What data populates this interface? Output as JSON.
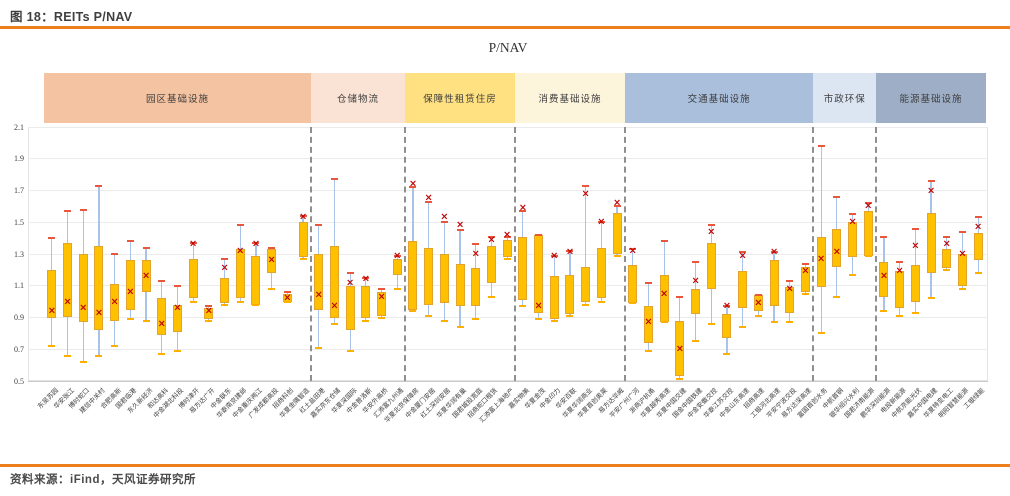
{
  "header": {
    "figure_label": "图 18：",
    "title": "REITs P/NAV"
  },
  "footer": {
    "source": "资料来源：iFind，天风证券研究所"
  },
  "chart_data": {
    "type": "boxplot",
    "title": "P/NAV",
    "ylabel": "",
    "ylim": [
      0.5,
      2.1
    ],
    "y_ticks": [
      "2.1",
      "1.9",
      "1.7",
      "1.5",
      "1.3",
      "1.1",
      "0.9",
      "0.7",
      "0.5"
    ],
    "grid": true,
    "marker_meaning": "x = current P/NAV",
    "colors": {
      "box": "#ffc000",
      "whisker": "#a9c2e8",
      "cap_top": "#e8573c",
      "cap_bottom": "#ffaf00",
      "marker": "#c00000",
      "separator": "#8f8f8f",
      "rule_orange": "#ee7f1d"
    },
    "sections": [
      {
        "name": "园区基础设施",
        "color": "#f4c3a1",
        "reits": [
          {
            "name": "东吴苏园",
            "low": 0.72,
            "q1": 0.9,
            "q3": 1.2,
            "high": 1.4,
            "mean": 0.94
          },
          {
            "name": "华安张江",
            "low": 0.66,
            "q1": 0.9,
            "q3": 1.37,
            "high": 1.57,
            "mean": 1.0
          },
          {
            "name": "博时蛇口",
            "low": 0.62,
            "q1": 0.87,
            "q3": 1.3,
            "high": 1.58,
            "mean": 0.96
          },
          {
            "name": "建信中关村",
            "low": 0.66,
            "q1": 0.82,
            "q3": 1.35,
            "high": 1.73,
            "mean": 0.93
          },
          {
            "name": "合肥高新",
            "low": 0.72,
            "q1": 0.88,
            "q3": 1.11,
            "high": 1.3,
            "mean": 1.0
          },
          {
            "name": "国君临港",
            "low": 0.89,
            "q1": 0.95,
            "q3": 1.26,
            "high": 1.38,
            "mean": 1.06
          },
          {
            "name": "东久新经济",
            "low": 0.88,
            "q1": 1.06,
            "q3": 1.26,
            "high": 1.34,
            "mean": 1.16
          },
          {
            "name": "和达高科",
            "low": 0.67,
            "q1": 0.79,
            "q3": 1.02,
            "high": 1.13,
            "mean": 0.86
          },
          {
            "name": "中金湖北科投",
            "low": 0.69,
            "q1": 0.81,
            "q3": 0.98,
            "high": 1.1,
            "mean": 0.96
          },
          {
            "name": "博时津开",
            "low": 1.0,
            "q1": 1.02,
            "q3": 1.27,
            "high": 1.37,
            "mean": 1.36
          },
          {
            "name": "易方达广开",
            "low": 0.88,
            "q1": 0.89,
            "q3": 0.96,
            "high": 0.97,
            "mean": 0.94
          },
          {
            "name": "中金联东",
            "low": 0.98,
            "q1": 0.99,
            "q3": 1.15,
            "high": 1.27,
            "mean": 1.21
          },
          {
            "name": "华泰南京建邺",
            "low": 1.0,
            "q1": 1.02,
            "q3": 1.33,
            "high": 1.48,
            "mean": 1.32
          },
          {
            "name": "中金重庆两江",
            "low": 0.98,
            "q1": 0.98,
            "q3": 1.29,
            "high": 1.37,
            "mean": 1.36
          },
          {
            "name": "广发成都高投",
            "low": 1.08,
            "q1": 1.18,
            "q3": 1.33,
            "high": 1.34,
            "mean": 1.26
          },
          {
            "name": "招商科创",
            "low": 1.0,
            "q1": 1.0,
            "q3": 1.05,
            "high": 1.06,
            "mean": 1.02
          },
          {
            "name": "华夏金隅智造",
            "low": 1.27,
            "q1": 1.28,
            "q3": 1.5,
            "high": 1.54,
            "mean": 1.53
          }
        ]
      },
      {
        "name": "仓储物流",
        "color": "#fae3d5",
        "reits": [
          {
            "name": "红土盐田港",
            "low": 0.71,
            "q1": 0.95,
            "q3": 1.3,
            "high": 1.48,
            "mean": 1.04
          },
          {
            "name": "嘉实京东仓储",
            "low": 0.86,
            "q1": 0.9,
            "q3": 1.35,
            "high": 1.77,
            "mean": 0.97
          },
          {
            "name": "华夏深国际",
            "low": 0.69,
            "q1": 0.82,
            "q3": 1.1,
            "high": 1.18,
            "mean": 1.12
          },
          {
            "name": "中金普洛斯",
            "low": 0.88,
            "q1": 0.9,
            "q3": 1.1,
            "high": 1.15,
            "mean": 1.14
          },
          {
            "name": "华安外高桥",
            "low": 0.9,
            "q1": 0.91,
            "q3": 1.06,
            "high": 1.08,
            "mean": 1.03
          },
          {
            "name": "汇添富九州通",
            "low": 1.08,
            "q1": 1.17,
            "q3": 1.27,
            "high": 1.29,
            "mean": 1.29
          }
        ]
      },
      {
        "name": "保障性租赁住房",
        "color": "#ffe182",
        "reits": [
          {
            "name": "华夏北京保障房",
            "low": 0.94,
            "q1": 0.95,
            "q3": 1.38,
            "high": 1.72,
            "mean": 1.74
          },
          {
            "name": "中金厦门安居",
            "low": 0.91,
            "q1": 0.98,
            "q3": 1.34,
            "high": 1.63,
            "mean": 1.65
          },
          {
            "name": "红土深圳安居",
            "low": 0.88,
            "q1": 0.99,
            "q3": 1.3,
            "high": 1.5,
            "mean": 1.53
          },
          {
            "name": "华夏华润有巢",
            "low": 0.84,
            "q1": 0.97,
            "q3": 1.24,
            "high": 1.45,
            "mean": 1.48
          },
          {
            "name": "国君城投宽庭",
            "low": 0.89,
            "q1": 0.97,
            "q3": 1.21,
            "high": 1.36,
            "mean": 1.3
          },
          {
            "name": "招商蛇口租赁",
            "low": 1.03,
            "q1": 1.12,
            "q3": 1.35,
            "high": 1.41,
            "mean": 1.39
          },
          {
            "name": "汇添富上海地产",
            "low": 1.27,
            "q1": 1.28,
            "q3": 1.39,
            "high": 1.41,
            "mean": 1.42
          }
        ]
      },
      {
        "name": "消费基础设施",
        "color": "#fdf4dc",
        "reits": [
          {
            "name": "嘉实物美",
            "low": 0.97,
            "q1": 1.01,
            "q3": 1.41,
            "high": 1.57,
            "mean": 1.59
          },
          {
            "name": "华夏金茂",
            "low": 0.89,
            "q1": 0.93,
            "q3": 1.42,
            "high": 1.42,
            "mean": 0.97
          },
          {
            "name": "中金印力",
            "low": 0.88,
            "q1": 0.89,
            "q3": 1.16,
            "high": 1.29,
            "mean": 1.29
          },
          {
            "name": "华安百联",
            "low": 0.91,
            "q1": 0.92,
            "q3": 1.17,
            "high": 1.32,
            "mean": 1.31
          },
          {
            "name": "华夏华润商业",
            "low": 0.98,
            "q1": 1.0,
            "q3": 1.22,
            "high": 1.73,
            "mean": 1.68
          },
          {
            "name": "华夏首创奥莱",
            "low": 1.0,
            "q1": 1.02,
            "q3": 1.34,
            "high": 1.5,
            "mean": 1.5
          },
          {
            "name": "易方达华威",
            "low": 1.29,
            "q1": 1.3,
            "q3": 1.56,
            "high": 1.6,
            "mean": 1.62
          }
        ]
      },
      {
        "name": "交通基础设施",
        "color": "#a9bfdc",
        "reits": [
          {
            "name": "平安广州广河",
            "low": 0.99,
            "q1": 0.99,
            "q3": 1.23,
            "high": 1.33,
            "mean": 1.32
          },
          {
            "name": "浙商沪杭甬",
            "low": 0.69,
            "q1": 0.74,
            "q3": 0.97,
            "high": 1.12,
            "mean": 0.87
          },
          {
            "name": "华夏越秀高速",
            "low": 0.87,
            "q1": 0.87,
            "q3": 1.17,
            "high": 1.38,
            "mean": 1.05
          },
          {
            "name": "华夏中国交建",
            "low": 0.51,
            "q1": 0.53,
            "q3": 0.88,
            "high": 1.03,
            "mean": 0.7
          },
          {
            "name": "国金中国铁建",
            "low": 0.75,
            "q1": 0.92,
            "q3": 1.08,
            "high": 1.25,
            "mean": 1.13
          },
          {
            "name": "中金安徽交控",
            "low": 0.86,
            "q1": 1.08,
            "q3": 1.37,
            "high": 1.48,
            "mean": 1.44
          },
          {
            "name": "华泰江苏交控",
            "low": 0.67,
            "q1": 0.77,
            "q3": 0.92,
            "high": 0.97,
            "mean": 0.97
          },
          {
            "name": "中金山东高速",
            "low": 0.84,
            "q1": 0.96,
            "q3": 1.19,
            "high": 1.31,
            "mean": 1.29
          },
          {
            "name": "招商高速",
            "low": 0.91,
            "q1": 0.94,
            "q3": 1.04,
            "high": 1.04,
            "mean": 0.99
          },
          {
            "name": "工银河北高速",
            "low": 0.87,
            "q1": 0.97,
            "q3": 1.26,
            "high": 1.31,
            "mean": 1.31
          },
          {
            "name": "平安宁波交投",
            "low": 0.87,
            "q1": 0.93,
            "q3": 1.09,
            "high": 1.13,
            "mean": 1.08
          },
          {
            "name": "易方达深高速",
            "low": 1.05,
            "q1": 1.06,
            "q3": 1.22,
            "high": 1.24,
            "mean": 1.19
          }
        ]
      },
      {
        "name": "市政环保",
        "color": "#dce5f2",
        "reits": [
          {
            "name": "富国首创水务",
            "low": 0.8,
            "q1": 1.09,
            "q3": 1.41,
            "high": 1.98,
            "mean": 1.27
          },
          {
            "name": "中航首钢",
            "low": 1.03,
            "q1": 1.22,
            "q3": 1.46,
            "high": 1.66,
            "mean": 1.31
          },
          {
            "name": "银华绍兴水利",
            "low": 1.17,
            "q1": 1.28,
            "q3": 1.5,
            "high": 1.55,
            "mean": 1.5
          },
          {
            "name": "国君济南能源",
            "low": 1.29,
            "q1": 1.29,
            "q3": 1.57,
            "high": 1.62,
            "mean": 1.6
          }
        ]
      },
      {
        "name": "能源基础设施",
        "color": "#9eaec6",
        "reits": [
          {
            "name": "鹏华深圳能源",
            "low": 0.94,
            "q1": 1.03,
            "q3": 1.25,
            "high": 1.41,
            "mean": 1.16
          },
          {
            "name": "电投新能源",
            "low": 0.91,
            "q1": 0.96,
            "q3": 1.19,
            "high": 1.25,
            "mean": 1.19
          },
          {
            "name": "中航京能光伏",
            "low": 0.93,
            "q1": 1.0,
            "q3": 1.23,
            "high": 1.46,
            "mean": 1.35
          },
          {
            "name": "嘉实中国电建",
            "low": 1.02,
            "q1": 1.18,
            "q3": 1.56,
            "high": 1.76,
            "mean": 1.7
          },
          {
            "name": "华夏特变电工",
            "low": 1.2,
            "q1": 1.21,
            "q3": 1.33,
            "high": 1.41,
            "mean": 1.36
          },
          {
            "name": "明阳智慧能源",
            "low": 1.08,
            "q1": 1.1,
            "q3": 1.3,
            "high": 1.44,
            "mean": 1.3
          },
          {
            "name": "工银绿能",
            "low": 1.18,
            "q1": 1.26,
            "q3": 1.43,
            "high": 1.53,
            "mean": 1.47
          }
        ]
      }
    ]
  }
}
